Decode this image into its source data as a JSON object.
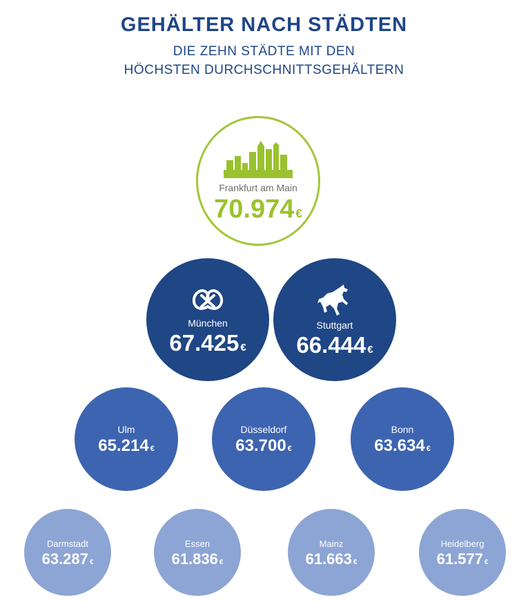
{
  "header": {
    "title": "GEHÄLTER NACH STÄDTEN",
    "subtitle_line1": "DIE ZEHN STÄDTE MIT DEN",
    "subtitle_line2": "HÖCHSTEN DURCHSCHNITTSGEHÄLTERN"
  },
  "colors": {
    "top": "#a4c639",
    "tier2": "#1f4685",
    "tier3": "#3d64b0",
    "tier4": "#8da5d4",
    "title": "#1e4687"
  },
  "currency": "€",
  "chart_data": {
    "type": "bubble",
    "title": "GEHÄLTER NACH STÄDTEN",
    "subtitle": "DIE ZEHN STÄDTE MIT DEN HÖCHSTEN DURCHSCHNITTSGEHÄLTERN",
    "categories": [
      "Frankfurt am Main",
      "München",
      "Stuttgart",
      "Ulm",
      "Düsseldorf",
      "Bonn",
      "Darmstadt",
      "Essen",
      "Mainz",
      "Heidelberg"
    ],
    "values": [
      70974,
      67425,
      66444,
      65214,
      63700,
      63634,
      63287,
      61836,
      61663,
      61577
    ],
    "value_labels": [
      "70.974",
      "67.425",
      "66.444",
      "65.214",
      "63.700",
      "63.634",
      "63.287",
      "61.836",
      "61.663",
      "61.577"
    ],
    "icons": [
      "skyline-icon",
      "pretzel-icon",
      "horse-icon",
      "",
      "",
      "",
      "",
      "",
      "",
      ""
    ]
  }
}
